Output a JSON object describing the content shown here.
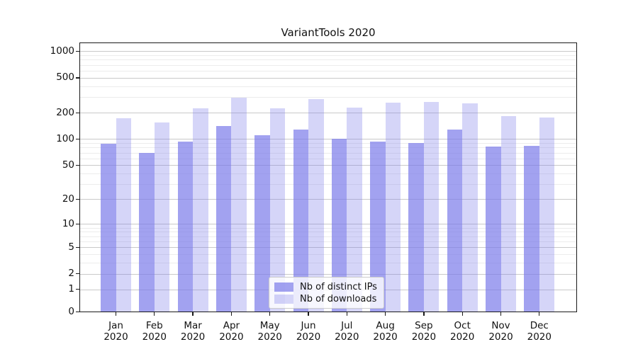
{
  "chart_data": {
    "type": "bar",
    "title": "VariantTools 2020",
    "x_tick_months": [
      "Jan",
      "Feb",
      "Mar",
      "Apr",
      "May",
      "Jun",
      "Jul",
      "Aug",
      "Sep",
      "Oct",
      "Nov",
      "Dec"
    ],
    "x_tick_year": "2020",
    "series": [
      {
        "name": "Nb of distinct IPs",
        "fill": "rgba(122,122,234,0.70)",
        "values": [
          88,
          69,
          94,
          140,
          111,
          128,
          101,
          93,
          91,
          129,
          82,
          84
        ]
      },
      {
        "name": "Nb of downloads",
        "fill": "rgba(125,125,232,0.32)",
        "values": [
          172,
          154,
          226,
          295,
          226,
          286,
          229,
          260,
          264,
          256,
          182,
          175
        ]
      }
    ],
    "yticks": [
      0,
      1,
      2,
      5,
      10,
      20,
      50,
      100,
      200,
      500,
      1000
    ],
    "yscale": "symlog (log(1+y))",
    "ylim": [
      0,
      1240
    ],
    "grid": true,
    "legend_position": "lower center"
  }
}
